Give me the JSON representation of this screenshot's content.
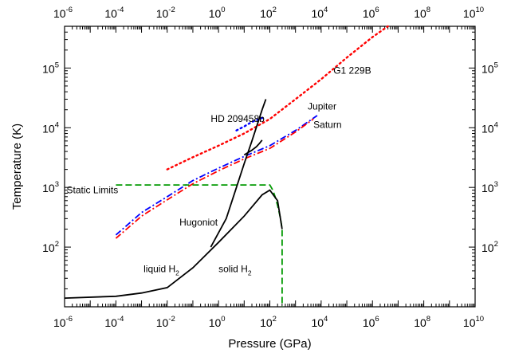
{
  "chart_data": {
    "type": "line",
    "xlabel": "Pressure (GPa)",
    "ylabel": "Temperature (K)",
    "xscale": "log",
    "yscale": "log",
    "xlim": [
      1e-06,
      10000000000.0
    ],
    "ylim": [
      10,
      500000.0
    ],
    "grid": false,
    "x_tick_labels": [
      {
        "base": "10",
        "exp": "-6"
      },
      {
        "base": "10",
        "exp": "-4"
      },
      {
        "base": "10",
        "exp": "-2"
      },
      {
        "base": "10",
        "exp": "0"
      },
      {
        "base": "10",
        "exp": "2"
      },
      {
        "base": "10",
        "exp": "4"
      },
      {
        "base": "10",
        "exp": "6"
      },
      {
        "base": "10",
        "exp": "8"
      },
      {
        "base": "10",
        "exp": "10"
      }
    ],
    "y_tick_labels": [
      {
        "base": "10",
        "exp": "2"
      },
      {
        "base": "10",
        "exp": "3"
      },
      {
        "base": "10",
        "exp": "4"
      },
      {
        "base": "10",
        "exp": "5"
      }
    ],
    "series": [
      {
        "name": "G1 229B",
        "color": "#ff0000",
        "style": "dotted",
        "x": [
          0.01,
          0.1,
          1,
          10,
          100,
          1000,
          10000,
          100000,
          1000000,
          4000000
        ],
        "y": [
          2000,
          3200,
          5000,
          8000,
          14000,
          30000,
          65000,
          150000,
          330000,
          500000
        ]
      },
      {
        "name": "Jupiter",
        "color": "#0000ff",
        "style": "dash-dot",
        "x": [
          0.0001,
          0.001,
          0.01,
          0.1,
          1,
          10,
          100,
          1000,
          7000
        ],
        "y": [
          160,
          380,
          700,
          1300,
          2100,
          3300,
          5000,
          9000,
          16000
        ]
      },
      {
        "name": "Saturn",
        "color": "#ff0000",
        "style": "dash-dot",
        "x": [
          0.0001,
          0.001,
          0.01,
          0.1,
          1,
          10,
          100,
          1000,
          5000
        ],
        "y": [
          140,
          330,
          620,
          1150,
          1900,
          3000,
          4500,
          8500,
          14000
        ]
      },
      {
        "name": "HD 209458b",
        "color": "#0000ff",
        "style": "dotted",
        "x": [
          5,
          10,
          20,
          40,
          60
        ],
        "y": [
          9000,
          10500,
          12500,
          14000,
          15000
        ]
      },
      {
        "name": "Static Limits",
        "color": "#009900",
        "style": "dashed",
        "x": [
          0.0001,
          100,
          130,
          160,
          200,
          260,
          300,
          300
        ],
        "y": [
          1100,
          1100,
          900,
          700,
          500,
          300,
          200,
          10
        ]
      },
      {
        "name": "Hugoniot",
        "color": "#000000",
        "style": "solid",
        "x": [
          0.5,
          2,
          5,
          10,
          20,
          50,
          70
        ],
        "y": [
          100,
          300,
          1000,
          2500,
          6000,
          20000,
          30000
        ]
      },
      {
        "name": "Hugoniot",
        "color": "#000000",
        "style": "solid",
        "x": [
          10,
          20,
          30,
          40,
          50
        ],
        "y": [
          3500,
          4200,
          4800,
          5500,
          6200
        ]
      },
      {
        "name": "liquid H2 / solid H2",
        "color": "#000000",
        "style": "solid",
        "x": [
          1e-06,
          0.0001,
          0.001,
          0.01,
          0.1,
          1,
          10,
          50,
          100,
          200,
          300
        ],
        "y": [
          14,
          15,
          17,
          21,
          45,
          120,
          330,
          750,
          900,
          600,
          200
        ]
      }
    ],
    "annotations": [
      {
        "text": "G1 229B",
        "x": 30000,
        "y": 80000
      },
      {
        "text": "HD 209458b",
        "x": 0.5,
        "y": 12500
      },
      {
        "text": "Jupiter",
        "x": 3000,
        "y": 20000
      },
      {
        "text": "Saturn",
        "x": 5000,
        "y": 10000
      },
      {
        "text": "Static Limits",
        "x": 1.2e-06,
        "y": 800
      },
      {
        "text": "Hugoniot",
        "x": 0.03,
        "y": 230
      },
      {
        "text": "liquid H",
        "sub": "2",
        "x": 0.0012,
        "y": 38
      },
      {
        "text": "solid H",
        "sub": "2",
        "x": 1.0,
        "y": 38
      }
    ]
  }
}
